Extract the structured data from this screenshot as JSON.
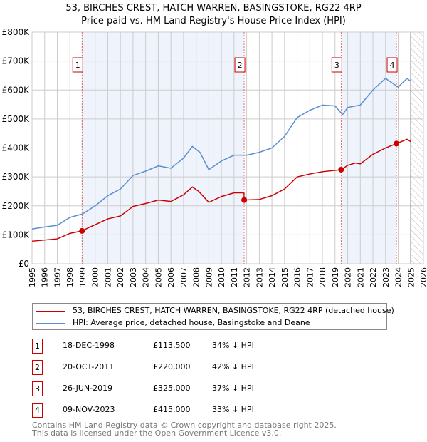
{
  "chart_data": {
    "type": "line",
    "title": "53, BIRCHES CREST, HATCH WARREN, BASINGSTOKE, RG22 4RP",
    "subtitle": "Price paid vs. HM Land Registry's House Price Index (HPI)",
    "xlim": [
      1995,
      2026
    ],
    "ylim": [
      0,
      800000
    ],
    "x_ticks": [
      "1995",
      "1996",
      "1997",
      "1998",
      "1999",
      "2000",
      "2001",
      "2002",
      "2003",
      "2004",
      "2005",
      "2006",
      "2007",
      "2008",
      "2009",
      "2010",
      "2011",
      "2012",
      "2013",
      "2014",
      "2015",
      "2016",
      "2017",
      "2018",
      "2019",
      "2020",
      "2021",
      "2022",
      "2023",
      "2024",
      "2025",
      "2026"
    ],
    "y_ticks": [
      {
        "v": 0,
        "label": "£0"
      },
      {
        "v": 100000,
        "label": "£100K"
      },
      {
        "v": 200000,
        "label": "£200K"
      },
      {
        "v": 300000,
        "label": "£300K"
      },
      {
        "v": 400000,
        "label": "£400K"
      },
      {
        "v": 500000,
        "label": "£500K"
      },
      {
        "v": 600000,
        "label": "£600K"
      },
      {
        "v": 700000,
        "label": "£700K"
      },
      {
        "v": 800000,
        "label": "£800K"
      }
    ],
    "grid": true,
    "data_end": 2025.0,
    "series": [
      {
        "name": "53, BIRCHES CREST, HATCH WARREN, BASINGSTOKE, RG22 4RP (detached house)",
        "color": "#cc0000",
        "x": [
          1995,
          1996,
          1997,
          1998,
          1998.96,
          1999.5,
          2000,
          2001,
          2002,
          2003,
          2004,
          2005,
          2006,
          2007,
          2007.7,
          2008.2,
          2009,
          2010,
          2011,
          2011.79,
          2011.8,
          2013,
          2014,
          2015,
          2016,
          2017,
          2018,
          2019.48,
          2020,
          2020.6,
          2021,
          2022,
          2023,
          2023.86,
          2024.7,
          2025
        ],
        "y": [
          78000,
          82000,
          86000,
          105000,
          113500,
          125000,
          135000,
          155000,
          165000,
          198000,
          208000,
          220000,
          215000,
          238000,
          265000,
          250000,
          212000,
          232000,
          245000,
          245000,
          220000,
          222000,
          235000,
          258000,
          300000,
          310000,
          318000,
          325000,
          340000,
          348000,
          345000,
          378000,
          400000,
          415000,
          430000,
          422000
        ]
      },
      {
        "name": "HPI: Average price, detached house, Basingstoke and Deane",
        "color": "#5b8fd0",
        "x": [
          1995,
          1996,
          1997,
          1998,
          1999,
          2000,
          2001,
          2002,
          2003,
          2004,
          2005,
          2006,
          2007,
          2007.7,
          2008.3,
          2009,
          2010,
          2011,
          2012,
          2013,
          2014,
          2015,
          2016,
          2017,
          2018,
          2019,
          2019.6,
          2020,
          2021,
          2022,
          2023,
          2024,
          2024.7,
          2025
        ],
        "y": [
          120000,
          127000,
          133000,
          160000,
          172000,
          200000,
          235000,
          258000,
          305000,
          320000,
          338000,
          330000,
          365000,
          405000,
          385000,
          325000,
          355000,
          375000,
          375000,
          385000,
          400000,
          440000,
          505000,
          530000,
          548000,
          545000,
          515000,
          540000,
          548000,
          600000,
          640000,
          610000,
          640000,
          630000
        ]
      }
    ],
    "sales": [
      {
        "n": "1",
        "x": 1998.96,
        "y": 113500,
        "date": "18-DEC-1998",
        "price": "£113,500",
        "hpi": "34% ↓ HPI"
      },
      {
        "n": "2",
        "x": 2011.8,
        "y": 220000,
        "date": "20-OCT-2011",
        "price": "£220,000",
        "hpi": "42% ↓ HPI"
      },
      {
        "n": "3",
        "x": 2019.48,
        "y": 325000,
        "date": "26-JUN-2019",
        "price": "£325,000",
        "hpi": "37% ↓ HPI"
      },
      {
        "n": "4",
        "x": 2023.86,
        "y": 415000,
        "date": "09-NOV-2023",
        "price": "£415,000",
        "hpi": "33% ↓ HPI"
      }
    ]
  },
  "footer": [
    "Contains HM Land Registry data © Crown copyright and database right 2025.",
    "This data is licensed under the Open Government Licence v3.0."
  ]
}
